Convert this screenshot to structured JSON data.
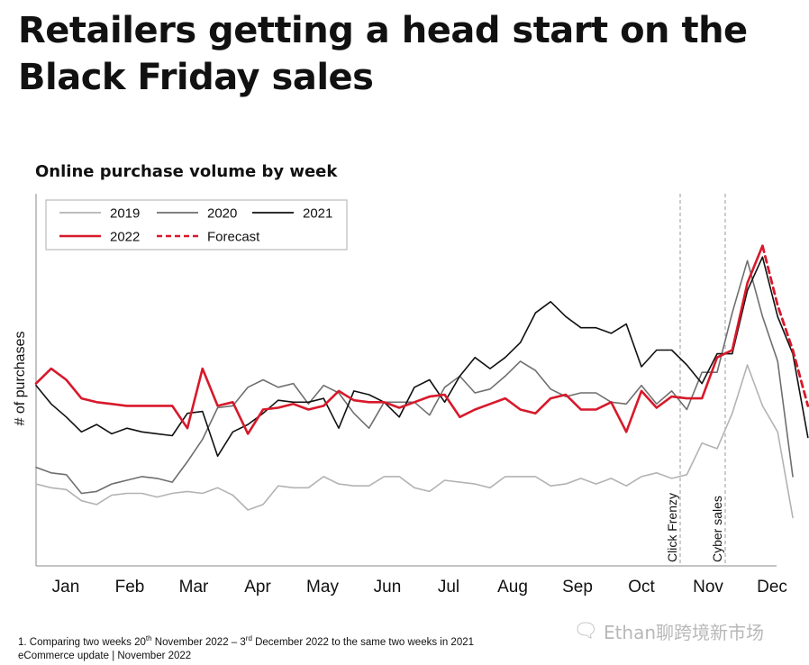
{
  "title": "Retailers getting a head start on the Black Friday sales",
  "subtitle": "Online purchase volume by week",
  "footnote": {
    "prefix": "1. Comparing two weeks 20",
    "sup1": "th",
    "mid": " November 2022 – 3",
    "sup2": "rd",
    "suffix": " December 2022 to the same two weeks in 2021"
  },
  "source": "eCommerce update | November 2022",
  "watermark": {
    "text": "Ethan聊跨境新市场",
    "icon": "wechat-icon"
  },
  "chart_data": {
    "type": "line",
    "ylabel": "# of purchases",
    "x_tick_labels": [
      "Jan",
      "Feb",
      "Mar",
      "Apr",
      "May",
      "Jun",
      "Jul",
      "Aug",
      "Sep",
      "Oct",
      "Nov",
      "Dec"
    ],
    "x_range": [
      0,
      46
    ],
    "y_range": [
      0,
      100
    ],
    "grid": false,
    "legend_position": "top-left",
    "annotations": [
      {
        "x": 41.8,
        "label": "Click Frenzy"
      },
      {
        "x": 44.7,
        "label": "Cyber sales"
      }
    ],
    "series": [
      {
        "name": "2019",
        "color": "#b3b3b3",
        "dash": false,
        "values": [
          22,
          21,
          20.5,
          17.5,
          16.5,
          19,
          19.5,
          19.5,
          18.5,
          19.5,
          20,
          19.5,
          21,
          19,
          15,
          16.5,
          21.5,
          21,
          21,
          24,
          22,
          21.5,
          21.5,
          24,
          24,
          21,
          20,
          23,
          22.5,
          22,
          21,
          24,
          24,
          24,
          21.5,
          22,
          23.5,
          22,
          23.5,
          21.5,
          24,
          25,
          23.5,
          24.5,
          33,
          31.5,
          41,
          54,
          43,
          36,
          13
        ]
      },
      {
        "name": "2020",
        "color": "#6f6f6f",
        "dash": false,
        "values": [
          26.5,
          25,
          24.5,
          19.5,
          20,
          22,
          23,
          24,
          23.5,
          22.5,
          28,
          34,
          42.5,
          43,
          48,
          50,
          48,
          49,
          43.5,
          48.5,
          46.5,
          41,
          37,
          44,
          44,
          44,
          40.5,
          48,
          51,
          46.5,
          47.5,
          51,
          55,
          52.5,
          47.5,
          45.5,
          46.5,
          46.5,
          44,
          43.5,
          48.5,
          43.5,
          47,
          42,
          52,
          52,
          68,
          82,
          67,
          55,
          24
        ]
      },
      {
        "name": "2021",
        "color": "#111111",
        "dash": false,
        "values": [
          48.5,
          43.5,
          40,
          36,
          38,
          35.5,
          37,
          36,
          35.5,
          35,
          41,
          41.5,
          29.5,
          36,
          38,
          41,
          44.5,
          44,
          44,
          45,
          37,
          47,
          46,
          44,
          40,
          48,
          50,
          44,
          51,
          56,
          53,
          56,
          60,
          68,
          71,
          67,
          64,
          64,
          62.5,
          65,
          53.5,
          58,
          58,
          54,
          49,
          57,
          57,
          74,
          83,
          67,
          57,
          34.5
        ]
      },
      {
        "name": "2022",
        "color": "#d7192b",
        "dash": false,
        "values": [
          49,
          53,
          50,
          45,
          44,
          43.5,
          43,
          43,
          43,
          43,
          37,
          53,
          43,
          44,
          35.5,
          42,
          42.5,
          43.5,
          42,
          43,
          47,
          44.5,
          44,
          44,
          42.5,
          44,
          45.5,
          46,
          40,
          42,
          43.5,
          45,
          42,
          41,
          45,
          46,
          42,
          42,
          44,
          36,
          47,
          42.5,
          45.5,
          45,
          45,
          56,
          58,
          76,
          86
        ]
      },
      {
        "name": "Forecast",
        "color": "#d7192b",
        "dash": true,
        "values": [
          86,
          70,
          58,
          43
        ]
      }
    ]
  }
}
